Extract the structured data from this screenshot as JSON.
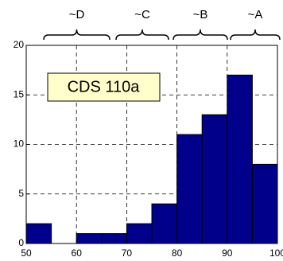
{
  "chart_data": {
    "type": "histogram",
    "bins": [
      50,
      55,
      60,
      65,
      70,
      75,
      80,
      85,
      90,
      95,
      100
    ],
    "counts": [
      2,
      0,
      1,
      1,
      2,
      4,
      11,
      13,
      17,
      8
    ],
    "color": "#00008b",
    "xlim": [
      50,
      100
    ],
    "xticks": [
      50,
      60,
      70,
      80,
      90,
      100
    ],
    "ylim": [
      0,
      20
    ],
    "yticks": [
      0,
      5,
      10,
      15,
      20
    ],
    "grid": true,
    "annotation": "CDS 110a",
    "grade_labels": [
      "~D",
      "~C",
      "~B",
      "~A"
    ]
  }
}
